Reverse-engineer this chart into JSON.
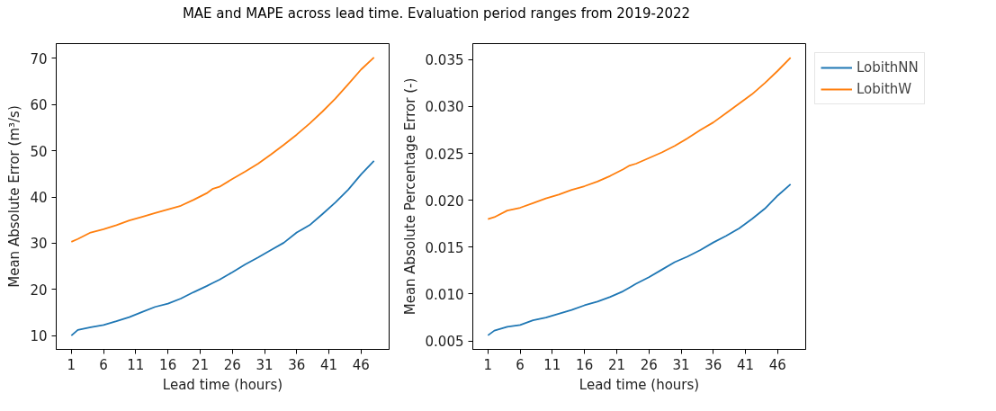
{
  "chart_data": [
    {
      "type": "line",
      "title": "MAE and MAPE across lead time. Evaluation period ranges from 2019-2022",
      "xlabel": "Lead time (hours)",
      "ylabel": "Mean Absolute Error (m³/s)",
      "x": [
        1,
        2,
        4,
        6,
        8,
        10,
        12,
        14,
        16,
        18,
        20,
        22,
        23,
        24,
        26,
        28,
        30,
        32,
        34,
        36,
        38,
        40,
        42,
        44,
        46,
        48
      ],
      "xlim": [
        -1.35,
        50.35
      ],
      "xticks": [
        1,
        6,
        11,
        16,
        21,
        26,
        31,
        36,
        41,
        46
      ],
      "ylim": [
        7.0,
        73.2
      ],
      "yticks": [
        10,
        20,
        30,
        40,
        50,
        60,
        70
      ],
      "grid": false,
      "series": [
        {
          "color": "#1f77b4",
          "values": [
            10.0,
            11.2,
            11.8,
            12.3,
            13.1,
            14.0,
            15.1,
            16.2,
            16.9,
            18.0,
            19.4,
            20.7,
            21.4,
            22.1,
            23.7,
            25.4,
            26.9,
            28.5,
            30.1,
            32.3,
            33.9,
            36.3,
            38.8,
            41.6,
            44.9,
            47.8
          ]
        },
        {
          "color": "#ff7f0e",
          "values": [
            30.3,
            30.9,
            32.3,
            33.0,
            33.9,
            34.9,
            35.7,
            36.5,
            37.3,
            38.1,
            39.4,
            40.8,
            41.8,
            42.2,
            43.9,
            45.5,
            47.2,
            49.2,
            51.3,
            53.5,
            55.9,
            58.5,
            61.3,
            64.4,
            67.6,
            70.2
          ]
        }
      ]
    },
    {
      "type": "line",
      "xlabel": "Lead time (hours)",
      "ylabel": "Mean Absolute Percentage Error (-)",
      "x": [
        1,
        2,
        4,
        6,
        8,
        10,
        12,
        14,
        16,
        18,
        20,
        22,
        23,
        24,
        26,
        28,
        30,
        32,
        34,
        36,
        38,
        40,
        42,
        44,
        46,
        48
      ],
      "xlim": [
        -1.35,
        50.35
      ],
      "xticks": [
        1,
        6,
        11,
        16,
        21,
        26,
        31,
        36,
        41,
        46
      ],
      "ylim": [
        0.0041,
        0.0367
      ],
      "yticks": [
        {
          "value": 0.005,
          "label": "0.005"
        },
        {
          "value": 0.01,
          "label": "0.010"
        },
        {
          "value": 0.015,
          "label": "0.015"
        },
        {
          "value": 0.02,
          "label": "0.020"
        },
        {
          "value": 0.025,
          "label": "0.025"
        },
        {
          "value": 0.03,
          "label": "0.030"
        },
        {
          "value": 0.035,
          "label": "0.035"
        }
      ],
      "grid": false,
      "legend": "right",
      "series": [
        {
          "name": "LobithNN",
          "color": "#1f77b4",
          "values": [
            0.0056,
            0.0061,
            0.0065,
            0.0067,
            0.0072,
            0.0075,
            0.0079,
            0.0083,
            0.0088,
            0.0092,
            0.0097,
            0.0103,
            0.0107,
            0.0111,
            0.0118,
            0.0126,
            0.0134,
            0.014,
            0.0147,
            0.0155,
            0.0162,
            0.017,
            0.018,
            0.0191,
            0.0205,
            0.0217
          ]
        },
        {
          "name": "LobithW",
          "color": "#ff7f0e",
          "values": [
            0.018,
            0.0182,
            0.0189,
            0.0192,
            0.0197,
            0.0202,
            0.0206,
            0.0211,
            0.0215,
            0.022,
            0.0226,
            0.0233,
            0.0237,
            0.0239,
            0.0245,
            0.0251,
            0.0258,
            0.0266,
            0.0275,
            0.0283,
            0.0293,
            0.0303,
            0.0313,
            0.0325,
            0.0338,
            0.0352
          ]
        }
      ]
    }
  ]
}
